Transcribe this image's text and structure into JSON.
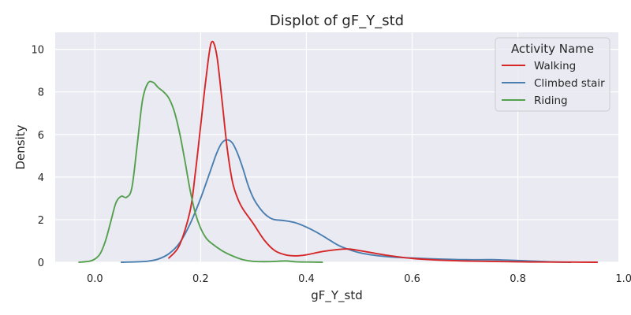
{
  "chart_data": {
    "type": "line",
    "title": "Displot of gF_Y_std",
    "xlabel": "gF_Y_std",
    "ylabel": "Density",
    "xlim": [
      -0.075,
      0.99
    ],
    "ylim": [
      0,
      10.8
    ],
    "xticks": [
      0.0,
      0.2,
      0.4,
      0.6,
      0.8,
      1.0
    ],
    "xtick_labels": [
      "0.0",
      "0.2",
      "0.4",
      "0.6",
      "0.8",
      "1.0"
    ],
    "yticks": [
      0,
      2,
      4,
      6,
      8,
      10
    ],
    "ytick_labels": [
      "0",
      "2",
      "4",
      "6",
      "8",
      "10"
    ],
    "grid": true,
    "legend": {
      "title": "Activity Name",
      "placement": "top-right"
    },
    "series": [
      {
        "name": "Walking",
        "color": "#d62728",
        "x": [
          0.14,
          0.16,
          0.18,
          0.19,
          0.2,
          0.21,
          0.22,
          0.23,
          0.24,
          0.25,
          0.26,
          0.27,
          0.28,
          0.3,
          0.32,
          0.34,
          0.36,
          0.38,
          0.4,
          0.43,
          0.46,
          0.48,
          0.5,
          0.53,
          0.56,
          0.6,
          0.65,
          0.7,
          0.75,
          0.8,
          0.85,
          0.9,
          0.95
        ],
        "y": [
          0.2,
          0.8,
          2.4,
          4.2,
          6.4,
          8.6,
          10.3,
          9.8,
          7.7,
          5.4,
          3.8,
          3.0,
          2.5,
          1.8,
          1.05,
          0.55,
          0.35,
          0.3,
          0.35,
          0.5,
          0.6,
          0.62,
          0.55,
          0.42,
          0.3,
          0.18,
          0.1,
          0.06,
          0.04,
          0.02,
          0.01,
          0.005,
          0.0
        ]
      },
      {
        "name": "Climbed stair",
        "color": "#4a7fb0",
        "x": [
          0.05,
          0.08,
          0.1,
          0.12,
          0.14,
          0.16,
          0.18,
          0.2,
          0.22,
          0.23,
          0.24,
          0.25,
          0.26,
          0.27,
          0.28,
          0.29,
          0.3,
          0.31,
          0.32,
          0.33,
          0.34,
          0.36,
          0.38,
          0.4,
          0.42,
          0.44,
          0.46,
          0.48,
          0.5,
          0.53,
          0.56,
          0.6,
          0.65,
          0.7,
          0.75,
          0.78,
          0.82,
          0.86,
          0.9
        ],
        "y": [
          0.0,
          0.02,
          0.05,
          0.15,
          0.4,
          0.9,
          1.8,
          3.0,
          4.4,
          5.1,
          5.6,
          5.75,
          5.6,
          5.1,
          4.4,
          3.6,
          3.0,
          2.6,
          2.3,
          2.1,
          2.0,
          1.95,
          1.85,
          1.65,
          1.4,
          1.1,
          0.8,
          0.6,
          0.45,
          0.32,
          0.25,
          0.2,
          0.15,
          0.12,
          0.12,
          0.1,
          0.06,
          0.02,
          0.0
        ]
      },
      {
        "name": "Riding",
        "color": "#55a04e",
        "x": [
          -0.03,
          -0.01,
          0.0,
          0.01,
          0.02,
          0.03,
          0.04,
          0.05,
          0.06,
          0.07,
          0.08,
          0.09,
          0.1,
          0.11,
          0.12,
          0.13,
          0.14,
          0.15,
          0.16,
          0.17,
          0.18,
          0.19,
          0.2,
          0.21,
          0.22,
          0.24,
          0.26,
          0.28,
          0.3,
          0.33,
          0.36,
          0.38,
          0.4,
          0.43
        ],
        "y": [
          0.0,
          0.05,
          0.15,
          0.4,
          1.0,
          1.9,
          2.8,
          3.1,
          3.05,
          3.5,
          5.5,
          7.6,
          8.4,
          8.45,
          8.2,
          8.0,
          7.7,
          7.1,
          6.1,
          4.8,
          3.4,
          2.3,
          1.6,
          1.15,
          0.9,
          0.55,
          0.3,
          0.12,
          0.04,
          0.03,
          0.06,
          0.02,
          0.01,
          0.0
        ]
      }
    ]
  }
}
